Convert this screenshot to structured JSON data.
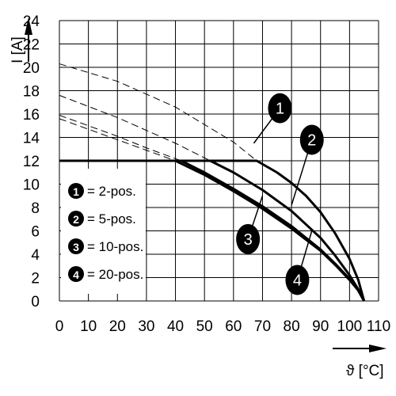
{
  "chart_data": {
    "type": "line",
    "xlabel": "ϑ [°C]",
    "ylabel": "I [A]",
    "xlim": [
      0,
      110
    ],
    "ylim": [
      0,
      24
    ],
    "x_ticks": [
      "0",
      "10",
      "20",
      "30",
      "40",
      "50",
      "60",
      "70",
      "80",
      "90",
      "100",
      "110"
    ],
    "y_ticks": [
      "0",
      "2",
      "4",
      "6",
      "8",
      "10",
      "12",
      "14",
      "16",
      "18",
      "20",
      "22",
      "24"
    ],
    "grid": true,
    "legend_position": "left",
    "legend": [
      {
        "marker": "1",
        "label": "= 2-pos."
      },
      {
        "marker": "2",
        "label": "= 5-pos."
      },
      {
        "marker": "3",
        "label": "= 10-pos."
      },
      {
        "marker": "4",
        "label": "= 20-pos."
      }
    ],
    "limit_line": {
      "y": 12
    },
    "series": [
      {
        "marker": "1",
        "dashed_part": [
          [
            0,
            20.3
          ],
          [
            20,
            18.8
          ],
          [
            40,
            16.6
          ],
          [
            60,
            13.6
          ],
          [
            68,
            12
          ]
        ],
        "solid_part": [
          [
            0,
            12
          ],
          [
            68,
            12
          ],
          [
            75,
            11
          ],
          [
            80,
            10.1
          ],
          [
            85,
            9
          ],
          [
            90,
            7.6
          ],
          [
            95,
            5.8
          ],
          [
            100,
            3.6
          ],
          [
            103,
            1.8
          ],
          [
            105,
            0
          ]
        ]
      },
      {
        "marker": "2",
        "dashed_part": [
          [
            0,
            17.6
          ],
          [
            20,
            15.7
          ],
          [
            40,
            13.5
          ],
          [
            52,
            12
          ]
        ],
        "solid_part": [
          [
            52,
            12
          ],
          [
            60,
            11
          ],
          [
            70,
            9.5
          ],
          [
            80,
            7.7
          ],
          [
            90,
            5.4
          ],
          [
            95,
            3.9
          ],
          [
            100,
            2.2
          ],
          [
            103,
            1
          ],
          [
            105,
            0
          ]
        ]
      },
      {
        "marker": "3",
        "dashed_part": [
          [
            0,
            15.9
          ],
          [
            20,
            14.1
          ],
          [
            30,
            13.1
          ],
          [
            42,
            12
          ]
        ],
        "solid_part": [
          [
            42,
            12
          ],
          [
            50,
            11
          ],
          [
            60,
            9.6
          ],
          [
            70,
            8.1
          ],
          [
            80,
            6.4
          ],
          [
            90,
            4.4
          ],
          [
            95,
            3.2
          ],
          [
            100,
            1.9
          ],
          [
            103,
            0.9
          ],
          [
            105,
            0
          ]
        ]
      },
      {
        "marker": "4",
        "dashed_part": [
          [
            0,
            15.6
          ],
          [
            20,
            13.8
          ],
          [
            30,
            12.9
          ],
          [
            40,
            12
          ]
        ],
        "solid_part": [
          [
            40,
            12
          ],
          [
            50,
            10.8
          ],
          [
            60,
            9.4
          ],
          [
            70,
            7.9
          ],
          [
            80,
            6.2
          ],
          [
            90,
            4.3
          ],
          [
            95,
            3.1
          ],
          [
            100,
            1.8
          ],
          [
            103,
            0.9
          ],
          [
            105,
            0
          ]
        ]
      }
    ],
    "callouts": [
      {
        "marker": "1",
        "at": [
          67,
          13.5
        ],
        "badge": [
          76,
          16.5
        ]
      },
      {
        "marker": "2",
        "at": [
          80,
          8.2
        ],
        "badge": [
          87,
          13.8
        ]
      },
      {
        "marker": "3",
        "at": [
          70,
          9
        ],
        "badge": [
          65,
          5.3
        ]
      },
      {
        "marker": "4",
        "at": [
          87,
          6
        ],
        "badge": [
          82,
          1.8
        ]
      }
    ]
  }
}
